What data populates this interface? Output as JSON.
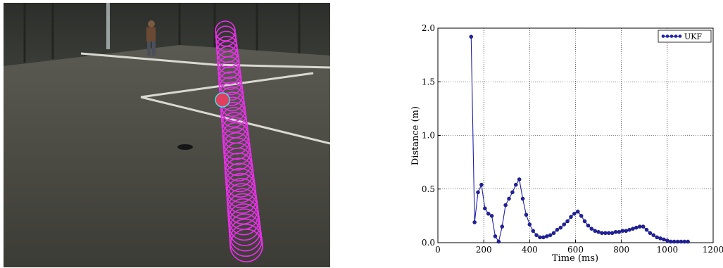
{
  "chart_data": {
    "type": "line",
    "xlabel": "Time (ms)",
    "ylabel": "Distance (m)",
    "xlim": [
      0,
      1200
    ],
    "ylim": [
      0.0,
      2.0
    ],
    "xticks": [
      "0",
      "200",
      "400",
      "600",
      "800",
      "1000",
      "1200"
    ],
    "yticks": [
      "0.0",
      "0.5",
      "1.0",
      "1.5",
      "2.0"
    ],
    "grid": true,
    "legend_position": "top-right",
    "series": [
      {
        "name": "UKF",
        "color": "#1f1fa8",
        "x": [
          145,
          160,
          175,
          190,
          205,
          220,
          235,
          250,
          265,
          280,
          295,
          310,
          325,
          340,
          355,
          370,
          385,
          400,
          415,
          430,
          445,
          460,
          475,
          490,
          505,
          520,
          535,
          550,
          565,
          580,
          595,
          610,
          625,
          640,
          655,
          670,
          685,
          700,
          715,
          730,
          745,
          760,
          775,
          790,
          805,
          820,
          835,
          850,
          865,
          880,
          895,
          910,
          925,
          940,
          955,
          970,
          985,
          1000,
          1015,
          1030,
          1045,
          1060,
          1075,
          1090
        ],
        "y": [
          1.92,
          0.19,
          0.47,
          0.54,
          0.32,
          0.27,
          0.25,
          0.06,
          0.01,
          0.15,
          0.35,
          0.41,
          0.47,
          0.54,
          0.59,
          0.41,
          0.26,
          0.17,
          0.11,
          0.07,
          0.05,
          0.05,
          0.06,
          0.07,
          0.09,
          0.12,
          0.14,
          0.17,
          0.2,
          0.24,
          0.27,
          0.29,
          0.25,
          0.2,
          0.16,
          0.13,
          0.11,
          0.1,
          0.09,
          0.09,
          0.09,
          0.09,
          0.1,
          0.1,
          0.11,
          0.11,
          0.12,
          0.13,
          0.14,
          0.15,
          0.15,
          0.12,
          0.09,
          0.07,
          0.05,
          0.04,
          0.03,
          0.02,
          0.01,
          0.01,
          0.01,
          0.01,
          0.01,
          0.01
        ]
      }
    ]
  }
}
